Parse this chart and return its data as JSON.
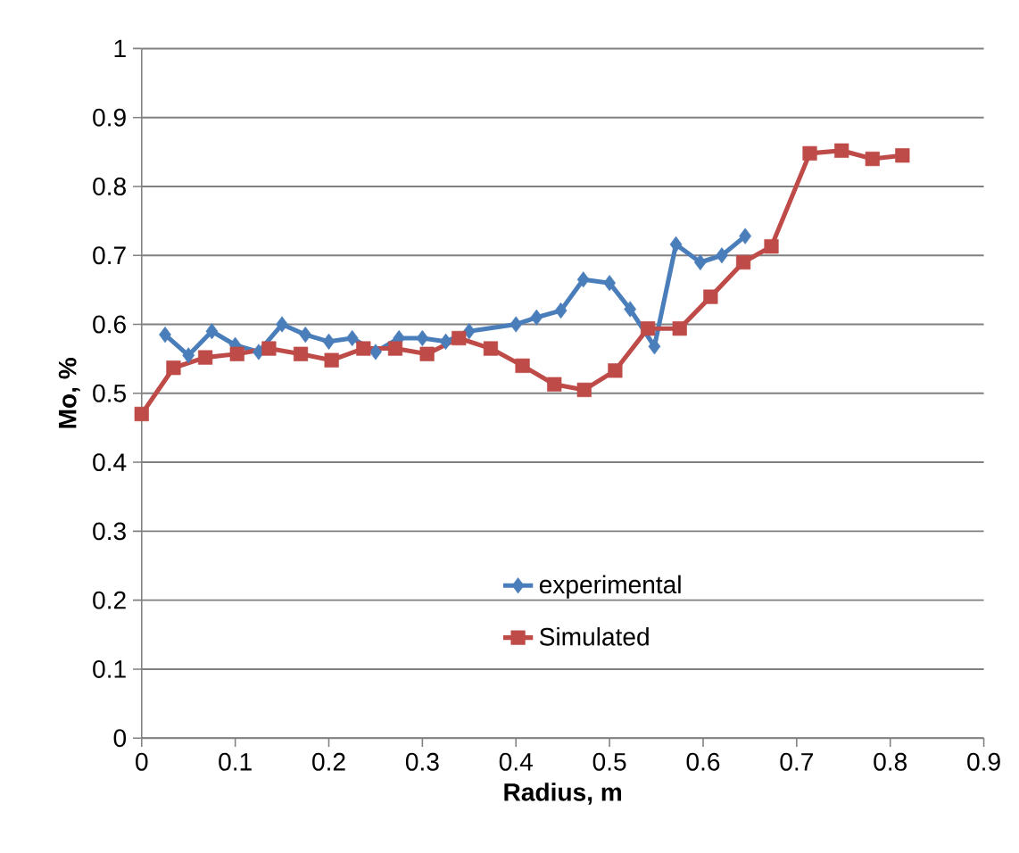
{
  "chart_data": {
    "type": "line",
    "xlabel": "Radius, m",
    "ylabel": "Mo, %",
    "xlim": [
      0,
      0.9
    ],
    "xticks": [
      0,
      0.1,
      0.2,
      0.3,
      0.4,
      0.5,
      0.6,
      0.7,
      0.8,
      0.9
    ],
    "ylim": [
      0,
      1
    ],
    "yticks": [
      0,
      0.1,
      0.2,
      0.3,
      0.4,
      0.5,
      0.6,
      0.7,
      0.8,
      0.9,
      1
    ],
    "grid": "y",
    "legend": "bottom right",
    "series": [
      {
        "name": "experimental",
        "color": "#4a7ebb",
        "marker": "diamond",
        "x": [
          0.025,
          0.05,
          0.075,
          0.1,
          0.125,
          0.15,
          0.175,
          0.2,
          0.225,
          0.25,
          0.275,
          0.3,
          0.325,
          0.35,
          0.375,
          0.4,
          0.422,
          0.448,
          0.472,
          0.5,
          0.522,
          0.548,
          0.571,
          0.597,
          0.62,
          0.645
        ],
        "values": [
          0.585,
          0.555,
          0.59,
          0.57,
          0.56,
          0.6,
          0.585,
          0.575,
          0.58,
          0.56,
          0.58,
          0.58,
          0.575,
          0.59,
          null,
          0.6,
          0.61,
          0.62,
          0.665,
          0.66,
          0.622,
          0.568,
          0.716,
          0.69,
          0.7,
          0.728
        ]
      },
      {
        "name": "Simulated",
        "color": "#be4b48",
        "marker": "square",
        "x": [
          0,
          0.034,
          0.068,
          0.102,
          0.136,
          0.17,
          0.203,
          0.237,
          0.271,
          0.305,
          0.339,
          0.373,
          0.407,
          0.441,
          0.473,
          0.506,
          0.541,
          0.575,
          0.608,
          0.643,
          0.673,
          0.714,
          0.748,
          0.781,
          0.813
        ],
        "values": [
          0.47,
          0.537,
          0.552,
          0.557,
          0.565,
          0.557,
          0.548,
          0.565,
          0.565,
          0.557,
          0.58,
          0.565,
          0.54,
          0.513,
          0.505,
          0.533,
          0.594,
          0.594,
          0.64,
          0.69,
          0.713,
          0.848,
          0.852,
          0.84,
          0.845
        ]
      }
    ]
  }
}
